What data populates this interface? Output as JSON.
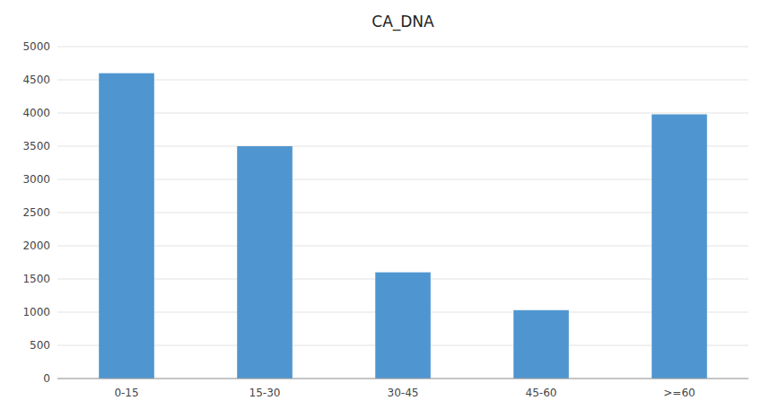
{
  "chart_data": {
    "type": "bar",
    "title": "CA_DNA",
    "categories": [
      "0-15",
      "15-30",
      "30-45",
      "45-60",
      ">=60"
    ],
    "values": [
      4600,
      3500,
      1600,
      1030,
      3980
    ],
    "color": "#4f96d0",
    "ylim": [
      0,
      5000
    ],
    "yticks": [
      0,
      500,
      1000,
      1500,
      2000,
      2500,
      3000,
      3500,
      4000,
      4500,
      5000
    ],
    "grid": true
  }
}
